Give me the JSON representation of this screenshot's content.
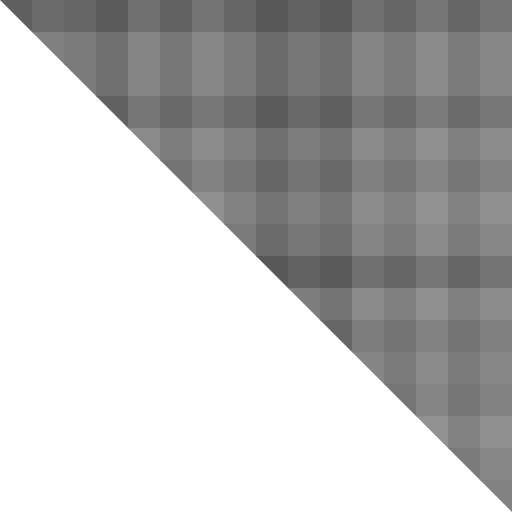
{
  "chart_data": {
    "type": "heatmap",
    "zlim": [
      0,
      100
    ],
    "tick_labels": false,
    "cells": [
      [
        63,
        58,
        60,
        64,
        56,
        61,
        55,
        60,
        66,
        61,
        65,
        56,
        60,
        54,
        60,
        55
      ],
      [
        null,
        50,
        52,
        56,
        48,
        53,
        47,
        52,
        58,
        53,
        57,
        48,
        52,
        46,
        52,
        47
      ],
      [
        null,
        null,
        52,
        56,
        48,
        53,
        47,
        52,
        58,
        53,
        57,
        48,
        52,
        46,
        52,
        47
      ],
      [
        null,
        null,
        null,
        62,
        54,
        59,
        53,
        58,
        64,
        59,
        63,
        54,
        58,
        52,
        58,
        53
      ],
      [
        null,
        null,
        null,
        null,
        46,
        51,
        45,
        50,
        56,
        51,
        55,
        46,
        50,
        44,
        50,
        45
      ],
      [
        null,
        null,
        null,
        null,
        null,
        55,
        49,
        54,
        60,
        55,
        59,
        50,
        54,
        48,
        54,
        49
      ],
      [
        null,
        null,
        null,
        null,
        null,
        null,
        44,
        49,
        55,
        50,
        54,
        45,
        49,
        43,
        49,
        44
      ],
      [
        null,
        null,
        null,
        null,
        null,
        null,
        null,
        52,
        58,
        53,
        57,
        48,
        52,
        46,
        52,
        47
      ],
      [
        null,
        null,
        null,
        null,
        null,
        null,
        null,
        null,
        66,
        61,
        65,
        56,
        60,
        54,
        60,
        55
      ],
      [
        null,
        null,
        null,
        null,
        null,
        null,
        null,
        null,
        null,
        51,
        55,
        46,
        50,
        44,
        50,
        45
      ],
      [
        null,
        null,
        null,
        null,
        null,
        null,
        null,
        null,
        null,
        null,
        60,
        51,
        55,
        49,
        55,
        50
      ],
      [
        null,
        null,
        null,
        null,
        null,
        null,
        null,
        null,
        null,
        null,
        null,
        48,
        52,
        46,
        52,
        47
      ],
      [
        null,
        null,
        null,
        null,
        null,
        null,
        null,
        null,
        null,
        null,
        null,
        null,
        54,
        48,
        54,
        49
      ],
      [
        null,
        null,
        null,
        null,
        null,
        null,
        null,
        null,
        null,
        null,
        null,
        null,
        null,
        43,
        49,
        44
      ],
      [
        null,
        null,
        null,
        null,
        null,
        null,
        null,
        null,
        null,
        null,
        null,
        null,
        null,
        null,
        52,
        47
      ],
      [
        null,
        null,
        null,
        null,
        null,
        null,
        null,
        null,
        null,
        null,
        null,
        null,
        null,
        null,
        null,
        49
      ]
    ]
  }
}
